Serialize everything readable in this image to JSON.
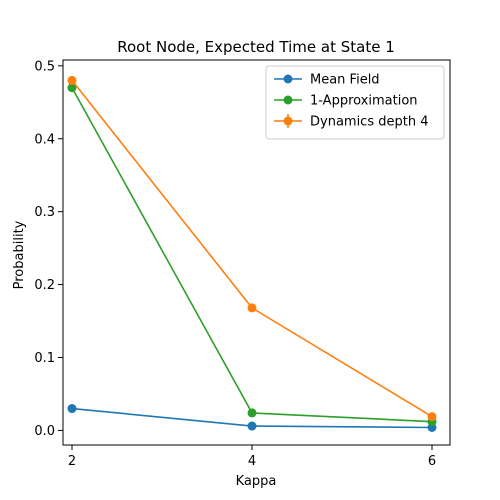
{
  "chart_data": {
    "type": "line",
    "title": "Root Node, Expected Time at State 1",
    "xlabel": "Kappa",
    "ylabel": "Probability",
    "x": [
      2,
      4,
      6
    ],
    "xticks": [
      2,
      4,
      6
    ],
    "yticks": [
      0.0,
      0.1,
      0.2,
      0.3,
      0.4,
      0.5
    ],
    "ytick_labels": [
      "0.0",
      "0.1",
      "0.2",
      "0.3",
      "0.4",
      "0.5"
    ],
    "xlim": [
      1.9,
      6.2
    ],
    "ylim": [
      -0.02,
      0.508
    ],
    "grid": false,
    "legend_position": "top-right",
    "series": [
      {
        "name": "Mean Field",
        "color": "#1f77b4",
        "values": [
          0.03,
          0.006,
          0.004
        ],
        "error_bars": false
      },
      {
        "name": "1-Approximation",
        "color": "#2ca02c",
        "values": [
          0.47,
          0.024,
          0.012
        ],
        "error_bars": false
      },
      {
        "name": "Dynamics depth 4",
        "color": "#ff7f0e",
        "values": [
          0.48,
          0.168,
          0.019
        ],
        "error_bars": true
      }
    ]
  }
}
